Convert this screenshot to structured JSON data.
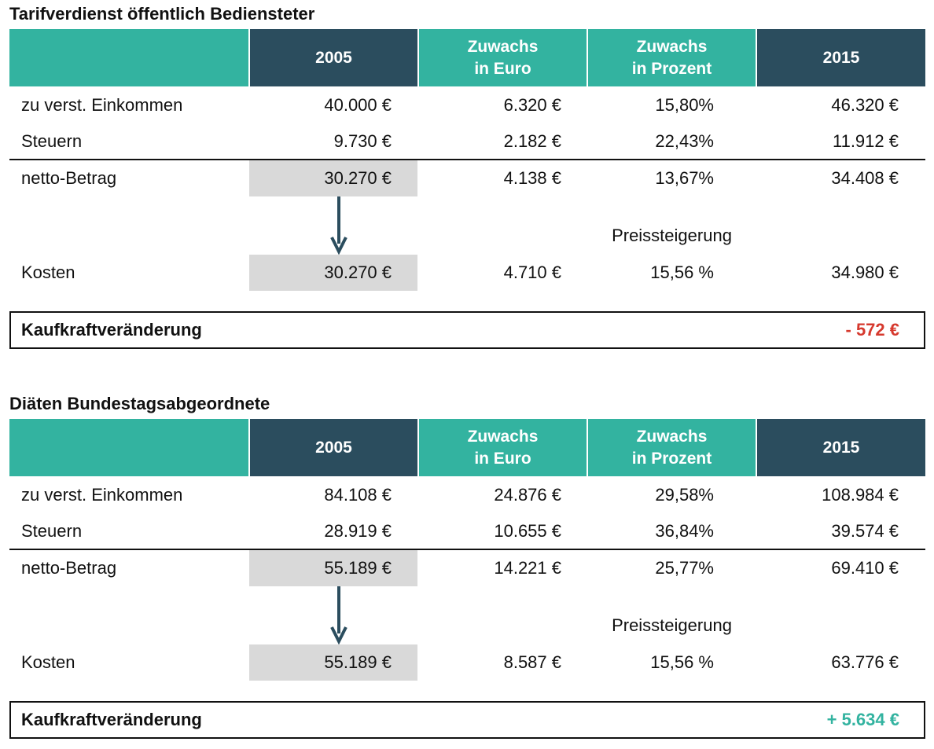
{
  "colors": {
    "teal": "#33b3a0",
    "navy": "#2b4d5e",
    "negative": "#d6392e",
    "positive": "#33b3a0",
    "highlight_grey": "#d9d9d9"
  },
  "sections": [
    {
      "title": "Tarifverdienst öffentlich Bediensteter",
      "headers": [
        "2005",
        "Zuwachs\nin Euro",
        "Zuwachs\nin Prozent",
        "2015"
      ],
      "rows": [
        {
          "label": "zu verst. Einkommen",
          "y2005": "40.000 €",
          "zuwachs_euro": "6.320 €",
          "zuwachs_prozent": "15,80%",
          "y2015": "46.320 €"
        },
        {
          "label": "Steuern",
          "y2005": "9.730 €",
          "zuwachs_euro": "2.182 €",
          "zuwachs_prozent": "22,43%",
          "y2015": "11.912 €"
        },
        {
          "label": "netto-Betrag",
          "y2005": "30.270 €",
          "zuwachs_euro": "4.138 €",
          "zuwachs_prozent": "13,67%",
          "y2015": "34.408 €"
        }
      ],
      "preissteigerung_label": "Preissteigerung",
      "kosten": {
        "label": "Kosten",
        "y2005": "30.270 €",
        "zuwachs_euro": "4.710 €",
        "zuwachs_prozent": "15,56 %",
        "y2015": "34.980 €"
      },
      "kaufkraft": {
        "label": "Kaufkraftveränderung",
        "value": "- 572 €",
        "sign": "negative"
      }
    },
    {
      "title": "Diäten Bundestagsabgeordnete",
      "headers": [
        "2005",
        "Zuwachs\nin Euro",
        "Zuwachs\nin Prozent",
        "2015"
      ],
      "rows": [
        {
          "label": "zu verst. Einkommen",
          "y2005": "84.108 €",
          "zuwachs_euro": "24.876 €",
          "zuwachs_prozent": "29,58%",
          "y2015": "108.984 €"
        },
        {
          "label": "Steuern",
          "y2005": "28.919 €",
          "zuwachs_euro": "10.655 €",
          "zuwachs_prozent": "36,84%",
          "y2015": "39.574 €"
        },
        {
          "label": "netto-Betrag",
          "y2005": "55.189 €",
          "zuwachs_euro": "14.221 €",
          "zuwachs_prozent": "25,77%",
          "y2015": "69.410 €"
        }
      ],
      "preissteigerung_label": "Preissteigerung",
      "kosten": {
        "label": "Kosten",
        "y2005": "55.189 €",
        "zuwachs_euro": "8.587 €",
        "zuwachs_prozent": "15,56 %",
        "y2015": "63.776 €"
      },
      "kaufkraft": {
        "label": "Kaufkraftveränderung",
        "value": "+ 5.634 €",
        "sign": "positive"
      }
    }
  ]
}
